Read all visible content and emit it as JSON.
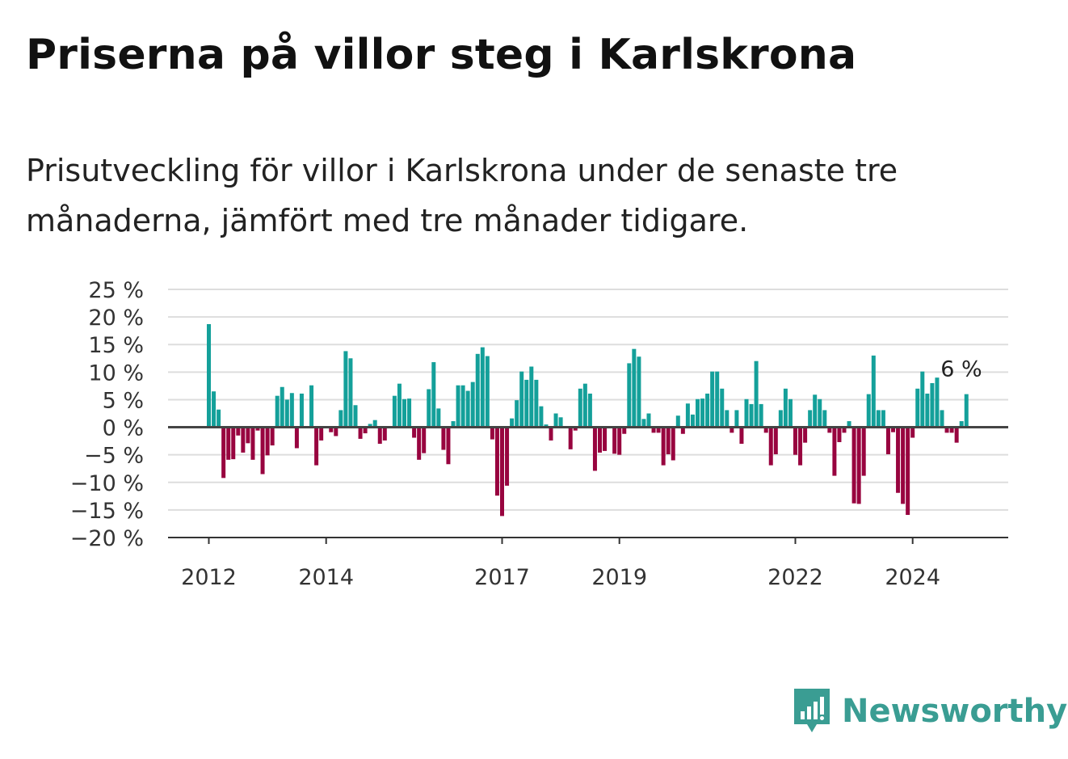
{
  "title": "Priserna på villor steg i Karlskrona",
  "subtitle": "Prisutveckling för villor i Karlskrona under de senaste tre månaderna, jämfört med tre månader tidigare.",
  "brand": {
    "name": "Newsworthy",
    "icon": "newsworthy-logo-icon",
    "color": "#3a9d93"
  },
  "colors": {
    "positive": "#14a09a",
    "negative": "#98043f",
    "grid": "#dddddd",
    "zero_line": "#444444"
  },
  "chart_data": {
    "type": "bar",
    "x_start": "2012-01",
    "x_step": "month",
    "ylim": [
      -20,
      25
    ],
    "y_ticks": [
      25,
      20,
      15,
      10,
      5,
      0,
      -5,
      -10,
      -15,
      -20
    ],
    "y_tick_labels": [
      "25 %",
      "20 %",
      "15 %",
      "10 %",
      "5 %",
      "0 %",
      "−5 %",
      "−10 %",
      "−15 %",
      "−20 %"
    ],
    "x_ticks": [
      "2012",
      "2014",
      "2017",
      "2019",
      "2022",
      "2024"
    ],
    "grid": true,
    "last_value_label": "6 %",
    "values": [
      18.7,
      6.5,
      3.2,
      -9.2,
      -5.9,
      -5.8,
      -1.5,
      -4.6,
      -2.9,
      -5.9,
      -0.6,
      -8.5,
      -5.1,
      -3.3,
      5.7,
      7.3,
      5.0,
      6.2,
      -3.8,
      6.1,
      0,
      7.6,
      -6.9,
      -2.4,
      0,
      -0.9,
      -1.6,
      3.1,
      13.8,
      12.5,
      4.0,
      -2.1,
      -1.1,
      0.6,
      1.3,
      -3.0,
      -2.4,
      0,
      5.7,
      7.9,
      5.1,
      5.2,
      -1.9,
      -5.9,
      -4.7,
      6.9,
      11.8,
      3.4,
      -4.1,
      -6.7,
      1.1,
      7.6,
      7.6,
      6.6,
      8.2,
      13.3,
      14.5,
      12.9,
      -2.2,
      -12.4,
      -16.1,
      -10.6,
      1.6,
      4.9,
      10.1,
      8.6,
      11.0,
      8.6,
      3.8,
      0.5,
      -2.4,
      2.5,
      1.8,
      0,
      -4.0,
      -0.6,
      7.0,
      7.9,
      6.1,
      -7.9,
      -4.6,
      -4.3,
      0,
      -4.8,
      -5.0,
      -1.2,
      11.6,
      14.2,
      12.8,
      1.5,
      2.5,
      -1.0,
      -1.0,
      -6.9,
      -4.9,
      -6.0,
      2.1,
      -1.2,
      4.3,
      2.3,
      5.1,
      5.2,
      6.1,
      10.1,
      10.1,
      7.0,
      3.1,
      -1.0,
      3.1,
      -3.0,
      5.1,
      4.2,
      12.0,
      4.2,
      -1.0,
      -6.9,
      -4.9,
      3.1,
      7.0,
      5.1,
      -5.0,
      -6.9,
      -2.8,
      3.1,
      5.9,
      5.1,
      3.1,
      -1.0,
      -8.8,
      -2.7,
      -1.0,
      1.1,
      -13.8,
      -13.9,
      -8.8,
      6.0,
      13.0,
      3.1,
      3.1,
      -4.9,
      -0.9,
      -11.9,
      -13.9,
      -15.9,
      -1.9,
      7.0,
      10.1,
      6.1,
      8.0,
      9.0,
      3.1,
      -1.0,
      -1.0,
      -2.8,
      1.1,
      6.0
    ]
  }
}
